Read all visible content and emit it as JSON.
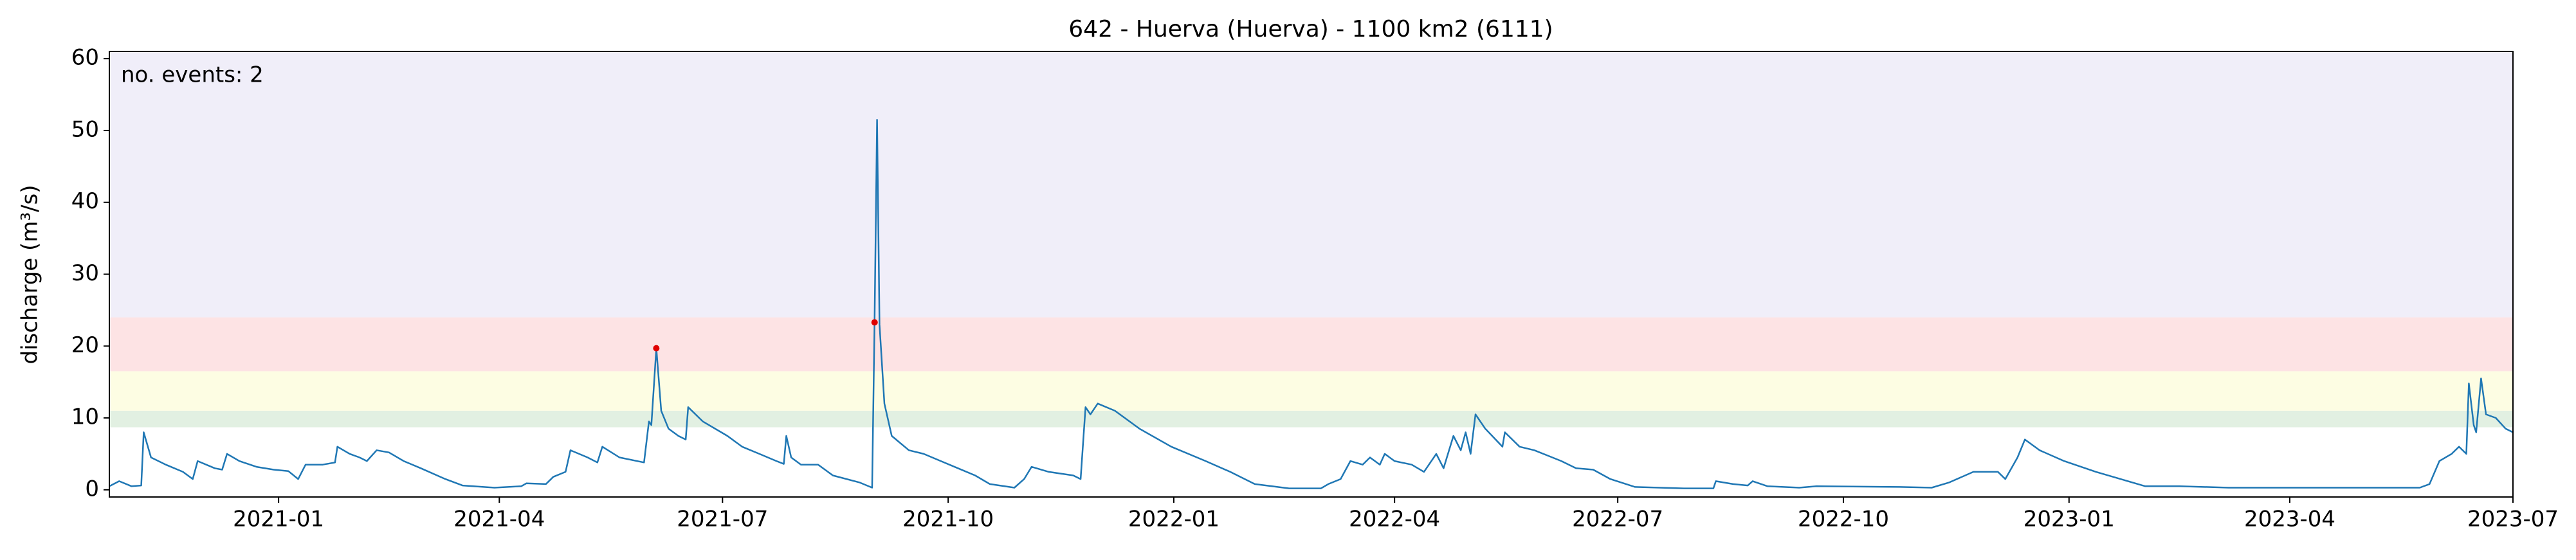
{
  "chart_data": {
    "type": "line",
    "title": "642 - Huerva (Huerva) - 1100 km2 (6111)",
    "y_label": "discharge (m³/s)",
    "annotation": "no. events: 2",
    "annotation_color": "#e00000",
    "xlim": [
      "2020-10-24",
      "2023-07"
    ],
    "xticks": [
      "2021-01",
      "2021-04",
      "2021-07",
      "2021-10",
      "2022-01",
      "2022-04",
      "2022-07",
      "2022-10",
      "2023-01",
      "2023-04",
      "2023-07"
    ],
    "ylim": [
      -1,
      61
    ],
    "yticks": [
      0,
      10,
      20,
      30,
      40,
      50,
      60
    ],
    "bands": [
      {
        "from": 8.7,
        "to": 11,
        "color": "#e2f0e2"
      },
      {
        "from": 11,
        "to": 16.5,
        "color": "#fdfde3"
      },
      {
        "from": 16.5,
        "to": 24,
        "color": "#fde3e4"
      },
      {
        "from": 24,
        "to": 61,
        "color": "#f0eef9"
      }
    ],
    "series": [
      {
        "color": "#1f77b4",
        "x": [
          "2020-10-24",
          "2020-10-28",
          "2020-11-02",
          "2020-11-06",
          "2020-11-07",
          "2020-11-10",
          "2020-11-16",
          "2020-11-23",
          "2020-11-27",
          "2020-11-29",
          "2020-12-06",
          "2020-12-09",
          "2020-12-11",
          "2020-12-16",
          "2020-12-23",
          "2020-12-30",
          "2021-01-05",
          "2021-01-09",
          "2021-01-12",
          "2021-01-19",
          "2021-01-24",
          "2021-01-25",
          "2021-01-30",
          "2021-02-03",
          "2021-02-06",
          "2021-02-10",
          "2021-02-15",
          "2021-02-21",
          "2021-02-28",
          "2021-03-10",
          "2021-03-17",
          "2021-03-30",
          "2021-04-10",
          "2021-04-12",
          "2021-04-20",
          "2021-04-23",
          "2021-04-28",
          "2021-04-30",
          "2021-05-07",
          "2021-05-11",
          "2021-05-13",
          "2021-05-20",
          "2021-05-30",
          "2021-06-01",
          "2021-06-02",
          "2021-06-04",
          "2021-06-06",
          "2021-06-09",
          "2021-06-13",
          "2021-06-16",
          "2021-06-17",
          "2021-06-23",
          "2021-07-03",
          "2021-07-09",
          "2021-07-16",
          "2021-07-23",
          "2021-07-26",
          "2021-07-27",
          "2021-07-29",
          "2021-08-02",
          "2021-08-09",
          "2021-08-15",
          "2021-08-26",
          "2021-08-31",
          "2021-09-01",
          "2021-09-02",
          "2021-09-03",
          "2021-09-05",
          "2021-09-08",
          "2021-09-15",
          "2021-09-21",
          "2021-09-28",
          "2021-10-05",
          "2021-10-12",
          "2021-10-18",
          "2021-10-28",
          "2021-11-01",
          "2021-11-04",
          "2021-11-11",
          "2021-11-21",
          "2021-11-24",
          "2021-11-26",
          "2021-11-28",
          "2021-12-01",
          "2021-12-08",
          "2021-12-18",
          "2021-12-31",
          "2022-01-14",
          "2022-01-24",
          "2022-02-03",
          "2022-02-17",
          "2022-03-02",
          "2022-03-05",
          "2022-03-10",
          "2022-03-14",
          "2022-03-19",
          "2022-03-22",
          "2022-03-26",
          "2022-03-28",
          "2022-04-01",
          "2022-04-08",
          "2022-04-13",
          "2022-04-18",
          "2022-04-21",
          "2022-04-25",
          "2022-04-28",
          "2022-04-30",
          "2022-05-02",
          "2022-05-04",
          "2022-05-08",
          "2022-05-15",
          "2022-05-16",
          "2022-05-22",
          "2022-05-28",
          "2022-06-08",
          "2022-06-14",
          "2022-06-21",
          "2022-06-28",
          "2022-07-08",
          "2022-07-28",
          "2022-08-09",
          "2022-08-10",
          "2022-08-17",
          "2022-08-23",
          "2022-08-25",
          "2022-08-31",
          "2022-09-13",
          "2022-09-20",
          "2022-10-24",
          "2022-11-06",
          "2022-11-13",
          "2022-11-23",
          "2022-12-03",
          "2022-12-06",
          "2022-12-11",
          "2022-12-14",
          "2022-12-20",
          "2022-12-30",
          "2023-01-12",
          "2023-01-22",
          "2023-02-01",
          "2023-02-15",
          "2023-03-07",
          "2023-04-10",
          "2023-05-24",
          "2023-05-28",
          "2023-06-01",
          "2023-06-06",
          "2023-06-09",
          "2023-06-12",
          "2023-06-13",
          "2023-06-15",
          "2023-06-16",
          "2023-06-18",
          "2023-06-20",
          "2023-06-24",
          "2023-06-28",
          "2023-07-01"
        ],
        "values": [
          0.5,
          1.2,
          0.5,
          0.6,
          8.0,
          4.5,
          3.5,
          2.5,
          1.5,
          4.0,
          3.0,
          2.8,
          5.0,
          4.0,
          3.2,
          2.8,
          2.6,
          1.5,
          3.5,
          3.5,
          3.8,
          6.0,
          5.0,
          4.5,
          4.0,
          5.5,
          5.2,
          4.0,
          3.0,
          1.5,
          0.6,
          0.3,
          0.5,
          0.9,
          0.8,
          1.8,
          2.5,
          5.5,
          4.5,
          3.8,
          6.0,
          4.5,
          3.8,
          9.5,
          9.0,
          19.7,
          11.0,
          8.5,
          7.5,
          7.0,
          11.5,
          9.5,
          7.5,
          6.0,
          5.0,
          4.0,
          3.6,
          7.5,
          4.5,
          3.5,
          3.5,
          2.0,
          1.0,
          0.3,
          23.3,
          51.5,
          23.0,
          12.0,
          7.5,
          5.5,
          5.0,
          4.0,
          3.0,
          2.0,
          0.8,
          0.3,
          1.5,
          3.2,
          2.5,
          2.0,
          1.5,
          11.5,
          10.5,
          12.0,
          11.0,
          8.5,
          6.0,
          4.0,
          2.5,
          0.8,
          0.2,
          0.2,
          0.8,
          1.5,
          4.0,
          3.5,
          4.5,
          3.5,
          5.0,
          4.0,
          3.5,
          2.5,
          5.0,
          3.0,
          7.5,
          5.5,
          8.0,
          5.0,
          10.5,
          8.5,
          6.0,
          8.0,
          6.0,
          5.5,
          4.0,
          3.0,
          2.8,
          1.5,
          0.4,
          0.2,
          0.2,
          1.2,
          0.8,
          0.6,
          1.2,
          0.5,
          0.3,
          0.5,
          0.4,
          0.3,
          1.0,
          2.5,
          2.5,
          1.5,
          4.5,
          7.0,
          5.5,
          4.0,
          2.5,
          1.5,
          0.5,
          0.5,
          0.3,
          0.3,
          0.3,
          0.8,
          4.0,
          5.0,
          6.0,
          5.0,
          14.8,
          9.0,
          8.0,
          15.5,
          10.5,
          10.0,
          8.5,
          8.0
        ]
      }
    ],
    "events": {
      "color": "#e00000",
      "x": [
        "2021-06-04",
        "2021-09-01"
      ],
      "values": [
        19.7,
        23.3
      ]
    }
  }
}
